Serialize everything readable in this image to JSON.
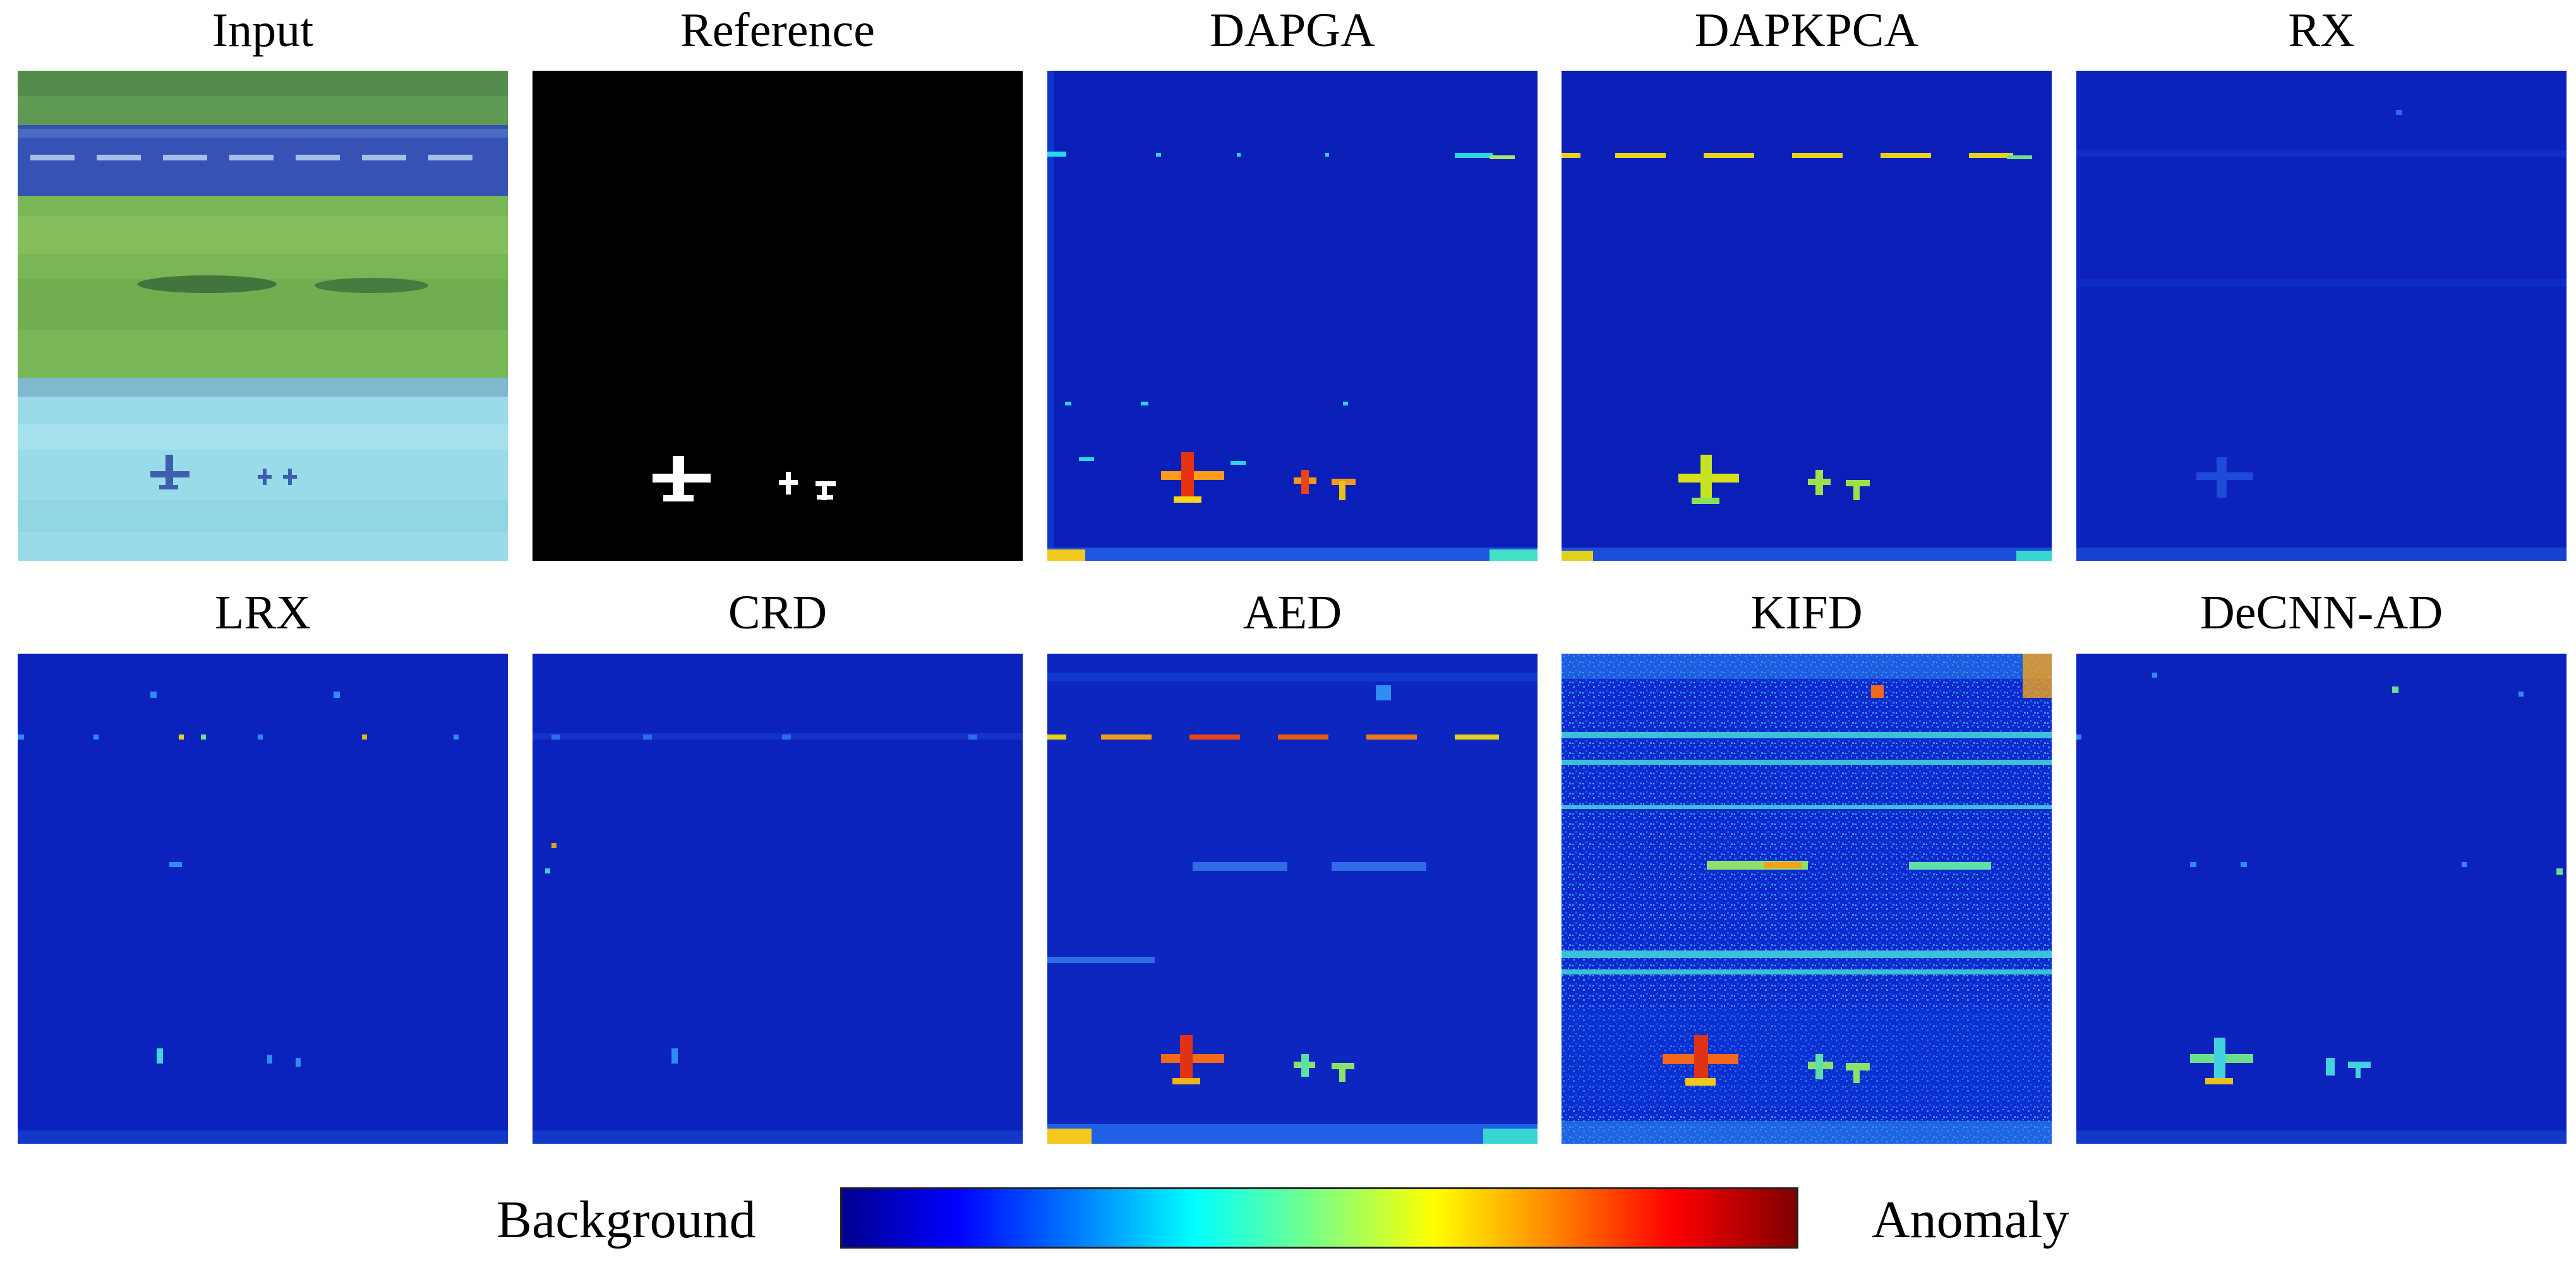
{
  "panels": [
    {
      "title": "Input"
    },
    {
      "title": "Reference"
    },
    {
      "title": "DAPGA"
    },
    {
      "title": "DAPKPCA"
    },
    {
      "title": "RX"
    },
    {
      "title": "LRX"
    },
    {
      "title": "CRD"
    },
    {
      "title": "AED"
    },
    {
      "title": "KIFD"
    },
    {
      "title": "DeCNN-AD"
    }
  ],
  "legend": {
    "left_label": "Background",
    "right_label": "Anomaly",
    "colormap": "jet"
  },
  "colors": {
    "background_low": "#00008f",
    "anomaly_high": "#800000",
    "map_base": "#0a1fb8"
  }
}
